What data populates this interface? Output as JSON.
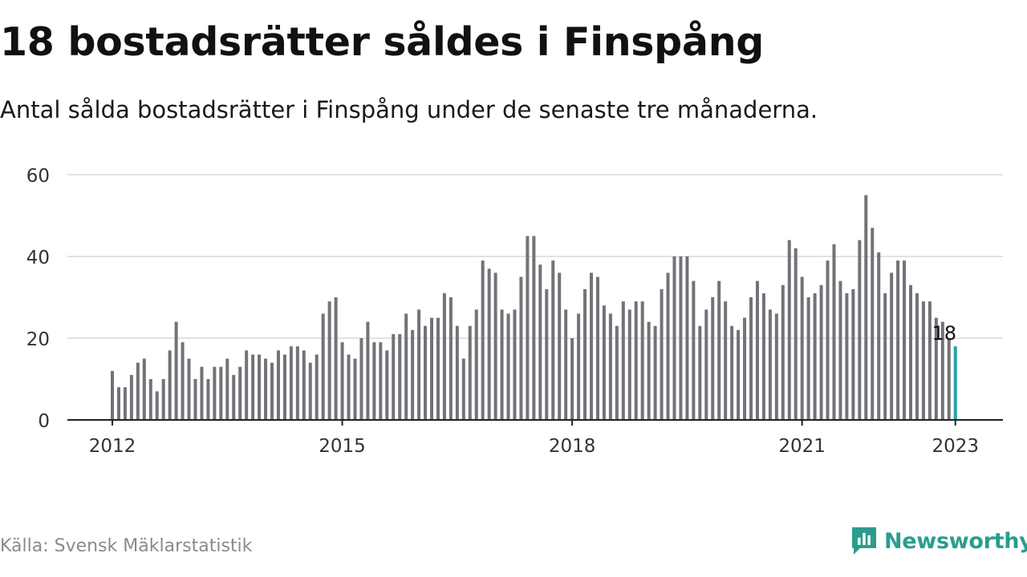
{
  "header": {
    "title": "18 bostadsrätter såldes i Finspång",
    "subtitle": "Antal sålda bostadsrätter i Finspång under de senaste tre månaderna."
  },
  "footer": {
    "source": "Källa: Svensk Mäklarstatistik",
    "brand": "Newsworthy"
  },
  "colors": {
    "bar": "#727278",
    "highlight": "#1fa3a3",
    "grid": "#d9d9d9",
    "axis": "#222222",
    "brand": "#2a9d8f"
  },
  "icons": {
    "brand": "bar-chart-icon"
  },
  "chart_data": {
    "type": "bar",
    "title": "18 bostadsrätter såldes i Finspång",
    "subtitle": "Antal sålda bostadsrätter i Finspång under de senaste tre månaderna.",
    "xlabel": "",
    "ylabel": "",
    "x_start": "2012-01",
    "x_step": "month",
    "xticks": [
      "2012",
      "2015",
      "2018",
      "2021",
      "2023"
    ],
    "ylim": [
      0,
      60
    ],
    "yticks": [
      0,
      20,
      40,
      60
    ],
    "grid": true,
    "values": [
      12,
      8,
      8,
      11,
      14,
      15,
      10,
      7,
      10,
      17,
      24,
      19,
      15,
      10,
      13,
      10,
      13,
      13,
      15,
      11,
      13,
      17,
      16,
      16,
      15,
      14,
      17,
      16,
      18,
      18,
      17,
      14,
      16,
      26,
      29,
      30,
      19,
      16,
      15,
      20,
      24,
      19,
      19,
      17,
      21,
      21,
      26,
      22,
      27,
      23,
      25,
      25,
      31,
      30,
      23,
      15,
      23,
      27,
      39,
      37,
      36,
      27,
      26,
      27,
      35,
      45,
      45,
      38,
      32,
      39,
      36,
      27,
      20,
      26,
      32,
      36,
      35,
      28,
      26,
      23,
      29,
      27,
      29,
      29,
      24,
      23,
      32,
      36,
      40,
      40,
      40,
      34,
      23,
      27,
      30,
      34,
      29,
      23,
      22,
      25,
      30,
      34,
      31,
      27,
      26,
      33,
      44,
      42,
      35,
      30,
      31,
      33,
      39,
      43,
      34,
      31,
      32,
      44,
      55,
      47,
      41,
      31,
      36,
      39,
      39,
      33,
      31,
      29,
      29,
      25,
      24,
      20,
      18
    ],
    "highlight_index": 132,
    "annotation": "18"
  }
}
